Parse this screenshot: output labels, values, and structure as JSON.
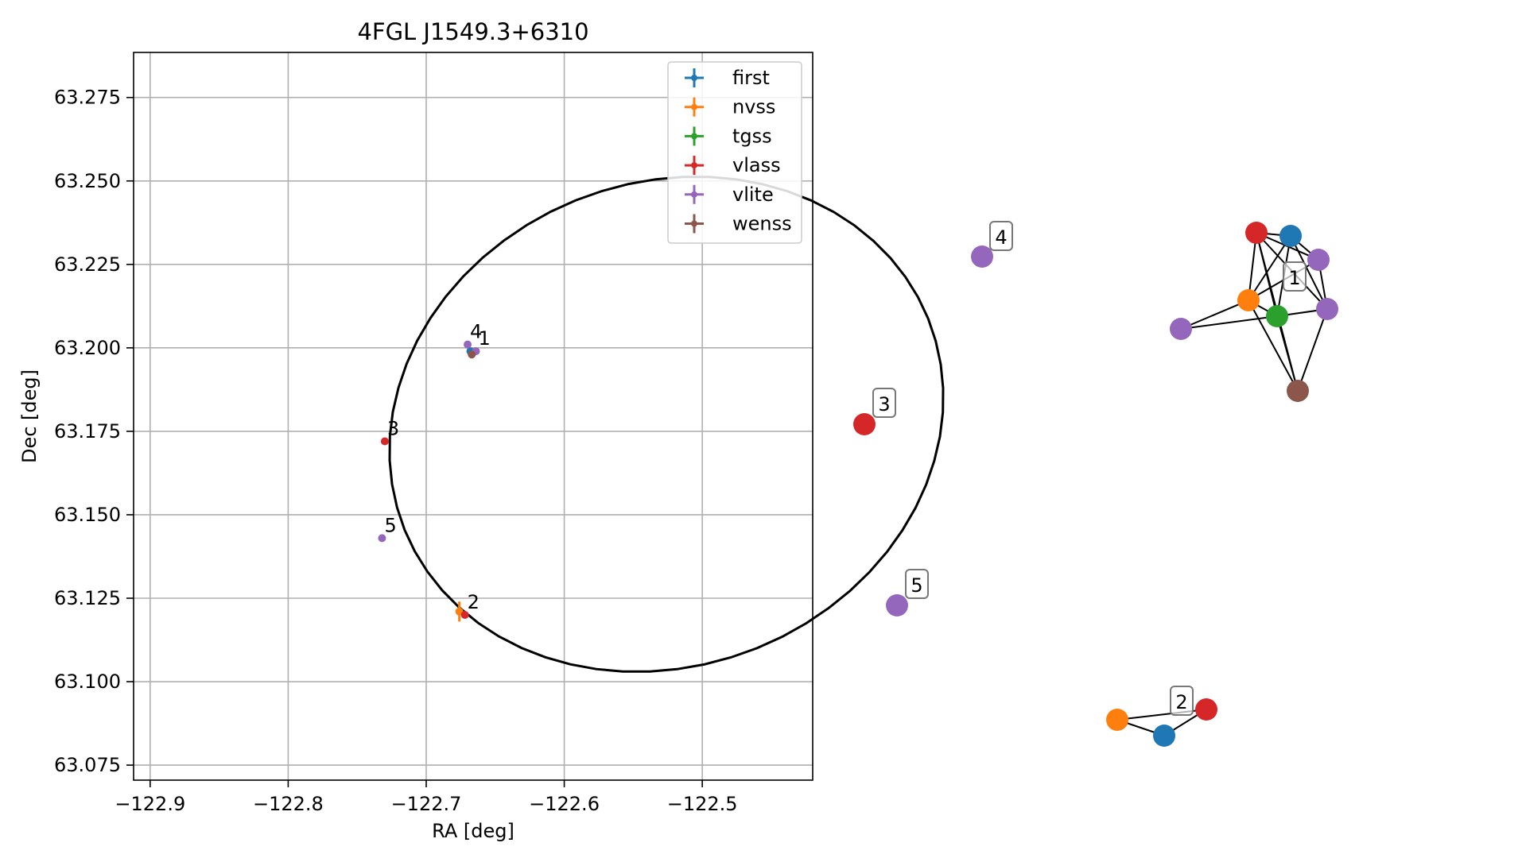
{
  "chart_data": [
    {
      "type": "scatter",
      "title": "4FGL J1549.3+6310",
      "xlabel": "RA [deg]",
      "ylabel": "Dec [deg]",
      "xlim": [
        -122.912,
        -122.42
      ],
      "ylim": [
        63.0705,
        63.2885
      ],
      "xticks": [
        -122.9,
        -122.8,
        -122.7,
        -122.6,
        -122.5
      ],
      "xtick_labels": [
        "−122.9",
        "−122.8",
        "−122.7",
        "−122.6",
        "−122.5"
      ],
      "yticks": [
        63.075,
        63.1,
        63.125,
        63.15,
        63.175,
        63.2,
        63.225,
        63.25,
        63.275
      ],
      "ytick_labels": [
        "63.075",
        "63.100",
        "63.125",
        "63.150",
        "63.175",
        "63.200",
        "63.225",
        "63.250",
        "63.275"
      ],
      "grid": true,
      "legend_position": "top-right",
      "series": [
        {
          "name": "first",
          "color": "#1f77b4",
          "points": [
            {
              "x": -122.668,
              "y": 63.199
            }
          ]
        },
        {
          "name": "nvss",
          "color": "#ff7f0e",
          "points": [
            {
              "x": -122.676,
              "y": 63.121,
              "yerr": 0.003,
              "xerr": 0.002
            }
          ]
        },
        {
          "name": "tgss",
          "color": "#2ca02c",
          "points": []
        },
        {
          "name": "vlass",
          "color": "#d62728",
          "points": [
            {
              "x": -122.73,
              "y": 63.172
            },
            {
              "x": -122.672,
              "y": 63.12
            }
          ]
        },
        {
          "name": "vlite",
          "color": "#9467bd",
          "points": [
            {
              "x": -122.67,
              "y": 63.201
            },
            {
              "x": -122.664,
              "y": 63.199
            },
            {
              "x": -122.732,
              "y": 63.143
            }
          ]
        },
        {
          "name": "wenss",
          "color": "#8c564b",
          "points": [
            {
              "x": -122.667,
              "y": 63.198
            }
          ]
        }
      ],
      "annotations": [
        {
          "text": "4",
          "x": -122.67,
          "y": 63.201
        },
        {
          "text": "1",
          "x": -122.664,
          "y": 63.199
        },
        {
          "text": "3",
          "x": -122.73,
          "y": 63.172
        },
        {
          "text": "5",
          "x": -122.732,
          "y": 63.143
        },
        {
          "text": "2",
          "x": -122.672,
          "y": 63.12
        }
      ],
      "ellipse": {
        "center_ra": -122.667,
        "center_dec": 63.178,
        "color": "#000000"
      }
    },
    {
      "type": "network",
      "groups": [
        "1",
        "2",
        "3",
        "4",
        "5"
      ],
      "nodes": [
        {
          "id": "n1",
          "catalog": "vlass",
          "group": "1"
        },
        {
          "id": "n2",
          "catalog": "first",
          "group": "1"
        },
        {
          "id": "n3",
          "catalog": "vlite",
          "group": "1"
        },
        {
          "id": "n4",
          "catalog": "nvss",
          "group": "1"
        },
        {
          "id": "n5",
          "catalog": "tgss",
          "group": "1"
        },
        {
          "id": "n6",
          "catalog": "vlite",
          "group": "1"
        },
        {
          "id": "n7",
          "catalog": "vlite",
          "group": "1"
        },
        {
          "id": "n8",
          "catalog": "wenss",
          "group": "1"
        },
        {
          "id": "n9",
          "catalog": "vlite",
          "group": "4"
        },
        {
          "id": "n10",
          "catalog": "vlass",
          "group": "3"
        },
        {
          "id": "n11",
          "catalog": "vlite",
          "group": "5"
        },
        {
          "id": "n12",
          "catalog": "nvss",
          "group": "2"
        },
        {
          "id": "n13",
          "catalog": "first",
          "group": "2"
        },
        {
          "id": "n14",
          "catalog": "vlass",
          "group": "2"
        }
      ],
      "edges": [
        [
          "n1",
          "n2"
        ],
        [
          "n1",
          "n3"
        ],
        [
          "n1",
          "n4"
        ],
        [
          "n1",
          "n5"
        ],
        [
          "n1",
          "n6"
        ],
        [
          "n1",
          "n8"
        ],
        [
          "n2",
          "n3"
        ],
        [
          "n2",
          "n4"
        ],
        [
          "n2",
          "n5"
        ],
        [
          "n2",
          "n6"
        ],
        [
          "n3",
          "n4"
        ],
        [
          "n3",
          "n6"
        ],
        [
          "n4",
          "n5"
        ],
        [
          "n4",
          "n7"
        ],
        [
          "n4",
          "n8"
        ],
        [
          "n5",
          "n6"
        ],
        [
          "n5",
          "n7"
        ],
        [
          "n5",
          "n8"
        ],
        [
          "n6",
          "n8"
        ],
        [
          "n12",
          "n13"
        ],
        [
          "n12",
          "n14"
        ],
        [
          "n13",
          "n14"
        ]
      ]
    }
  ]
}
